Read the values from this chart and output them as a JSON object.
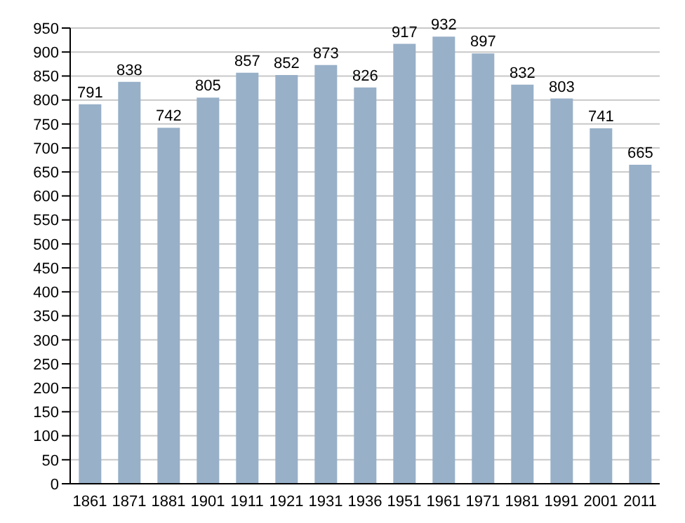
{
  "chart_data": {
    "type": "bar",
    "categories": [
      "1861",
      "1871",
      "1881",
      "1901",
      "1911",
      "1921",
      "1931",
      "1936",
      "1951",
      "1961",
      "1971",
      "1981",
      "1991",
      "2001",
      "2011"
    ],
    "values": [
      791,
      838,
      742,
      805,
      857,
      852,
      873,
      826,
      917,
      932,
      897,
      832,
      803,
      741,
      665
    ],
    "color": "#98b0c8",
    "data_labels": true,
    "ylim": [
      0,
      950
    ],
    "yticks": [
      0,
      50,
      100,
      150,
      200,
      250,
      300,
      350,
      400,
      450,
      500,
      550,
      600,
      650,
      700,
      750,
      800,
      850,
      900,
      950
    ],
    "grid": "y"
  }
}
